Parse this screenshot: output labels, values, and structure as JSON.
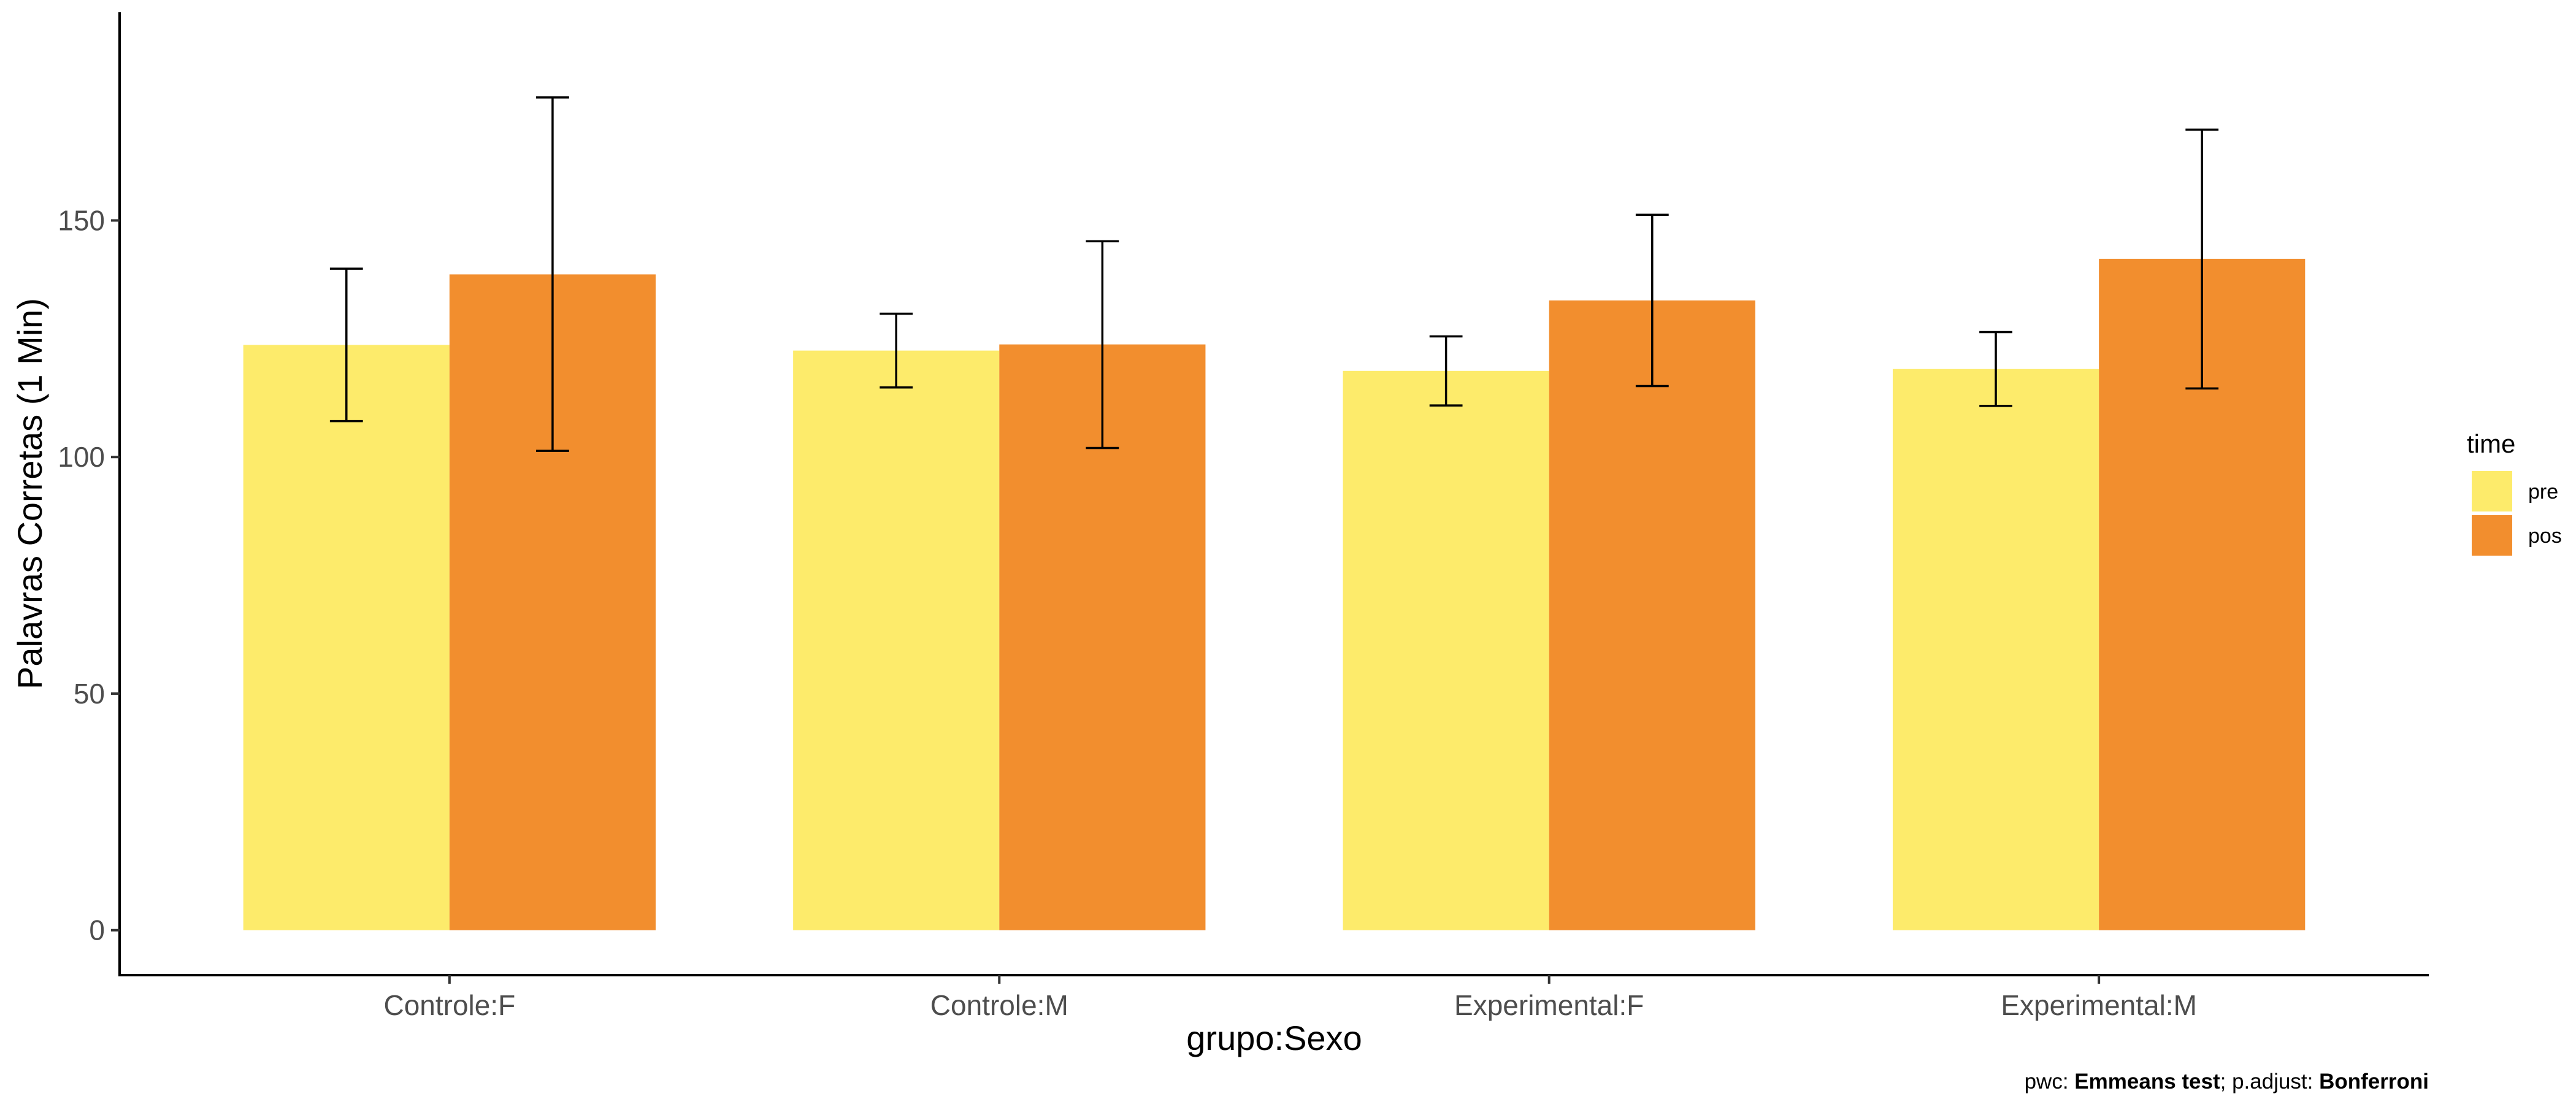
{
  "chart_data": {
    "type": "bar",
    "categories": [
      "Controle:F",
      "Controle:M",
      "Experimental:F",
      "Experimental:M"
    ],
    "series": [
      {
        "name": "pre",
        "color": "#FDEB6B",
        "values": [
          123.7,
          122.5,
          118.2,
          118.6
        ],
        "error_low": [
          107.6,
          114.7,
          110.9,
          110.8
        ],
        "error_high": [
          139.8,
          130.3,
          125.5,
          126.4
        ]
      },
      {
        "name": "pos",
        "color": "#F28E2E",
        "values": [
          138.6,
          123.8,
          133.1,
          141.9
        ],
        "error_low": [
          101.3,
          101.9,
          115.0,
          114.5
        ],
        "error_high": [
          176.0,
          145.6,
          151.2,
          169.2
        ]
      }
    ],
    "xlabel": "grupo:Sexo",
    "ylabel": "Palavras Corretas (1 Min)",
    "ylim": [
      -9.5,
      194
    ],
    "yticks": [
      0,
      50,
      100,
      150
    ],
    "legend": {
      "title": "time",
      "position": "right"
    },
    "grid": false,
    "caption": {
      "prefix": "pwc: ",
      "test": "Emmeans test",
      "middle": "; p.adjust: ",
      "adjust": "Bonferroni"
    }
  }
}
